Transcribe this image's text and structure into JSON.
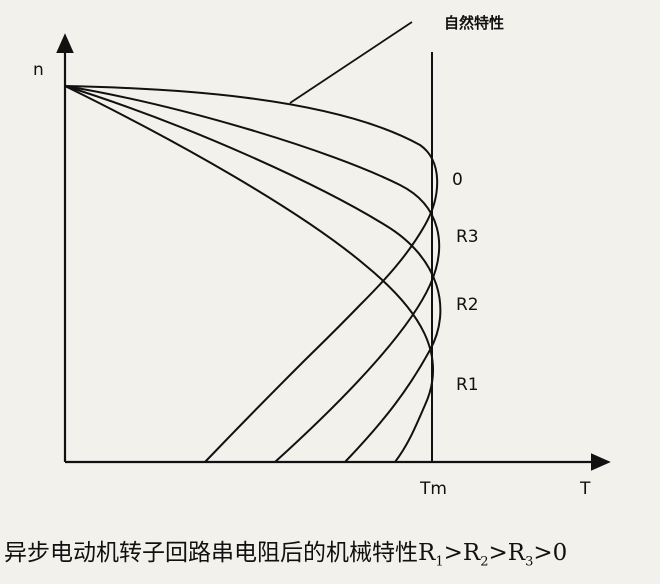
{
  "labels": {
    "y_axis": "n",
    "x_axis": "T",
    "tm": "Tm",
    "natural": "自然特性",
    "curve_0": "0",
    "curve_r3": "R3",
    "curve_r2": "R2",
    "curve_r1": "R1"
  },
  "caption": {
    "main": "异步电动机转子回路串电阻后的机械特性R",
    "s1": "1",
    "gt1": ">R",
    "s2": "2",
    "gt2": ">R",
    "s3": "3",
    "tail": ">0"
  },
  "colors": {
    "ink": "#111111",
    "paper": "#f3f1ec"
  }
}
